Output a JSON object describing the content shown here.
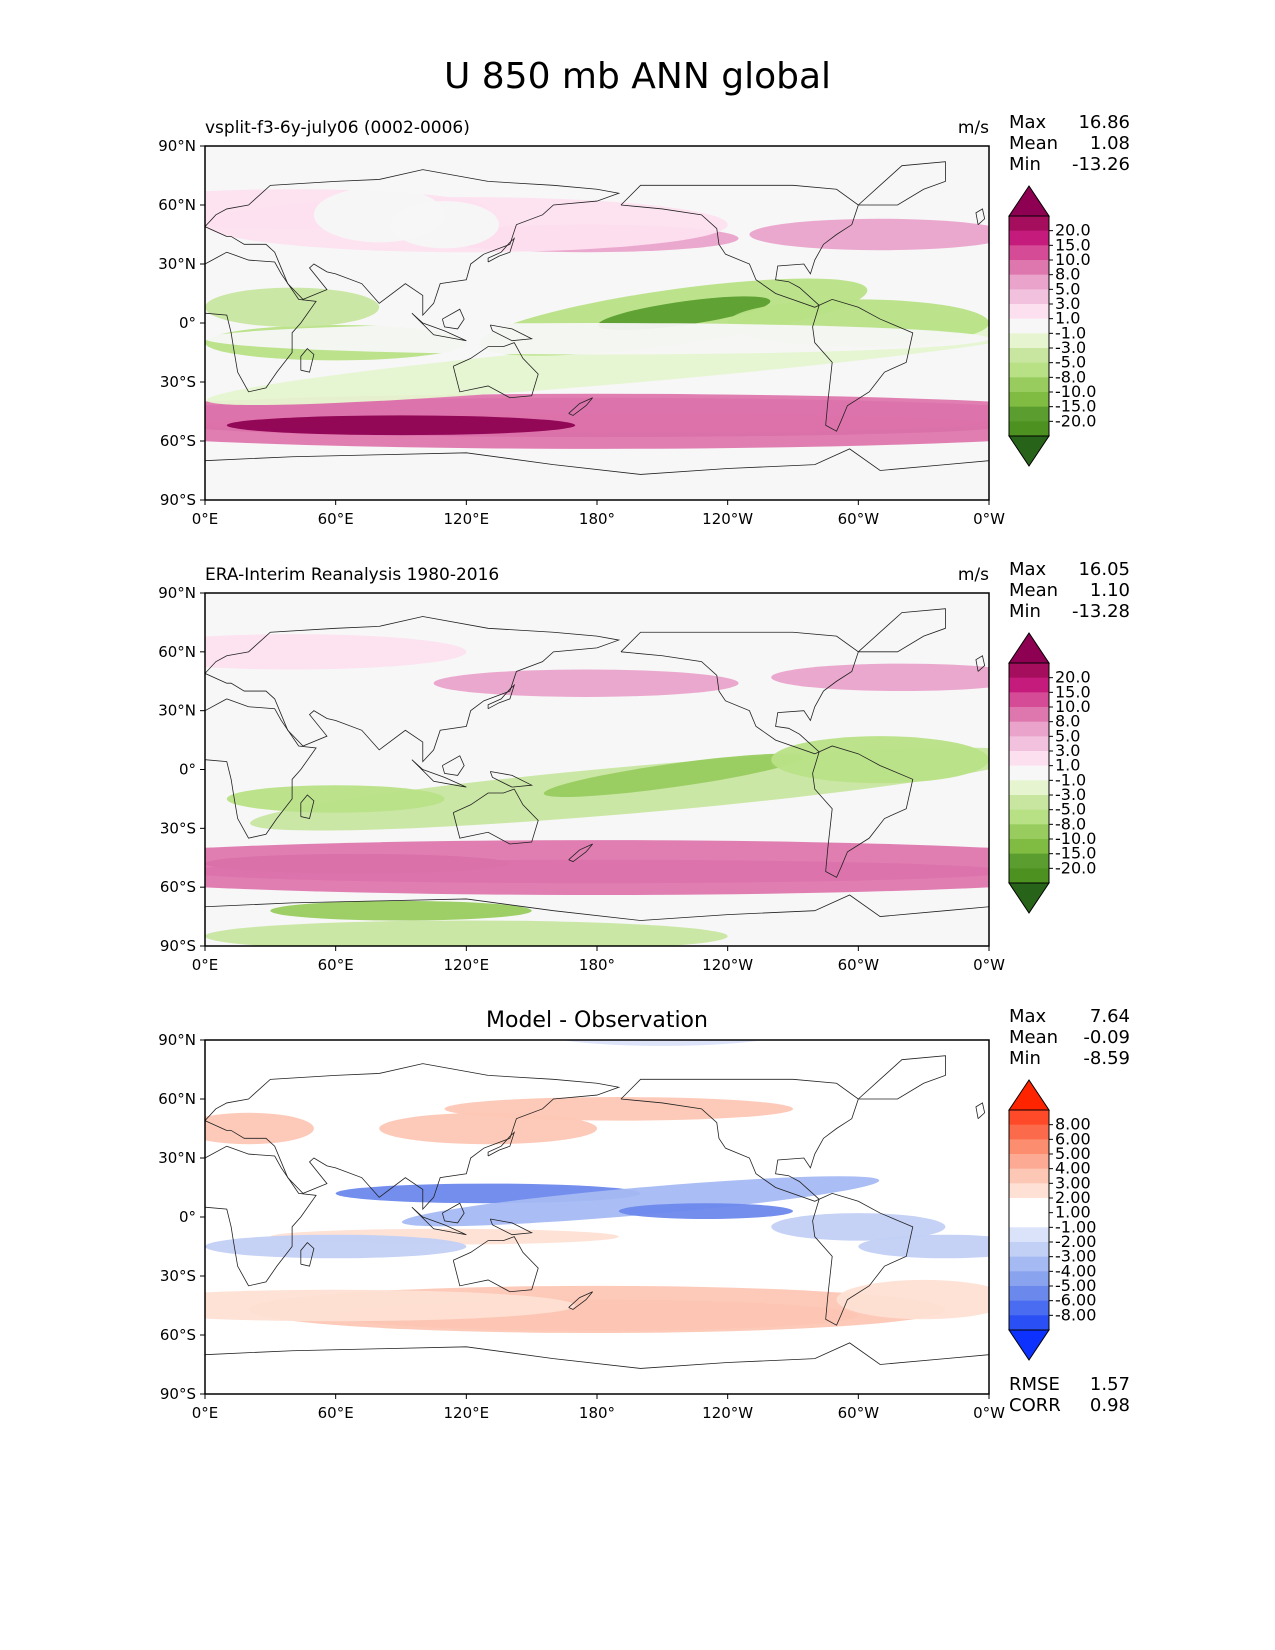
{
  "figure_title": "U 850 mb ANN global",
  "tick_labels": {
    "x": [
      "0°E",
      "60°E",
      "120°E",
      "180°",
      "120°W",
      "60°W",
      "0°W"
    ],
    "y": [
      "90°N",
      "60°N",
      "30°N",
      "0°",
      "30°S",
      "60°S",
      "90°S"
    ]
  },
  "chart_data": [
    {
      "type": "heatmap",
      "title": "vsplit-f3-6y-july06 (0002-0006)",
      "units": "m/s",
      "stats": [
        [
          "Max",
          "16.86"
        ],
        [
          "Mean",
          "1.08"
        ],
        [
          "Min",
          "-13.26"
        ]
      ],
      "xlim": [
        0,
        360
      ],
      "ylim": [
        -90,
        90
      ],
      "colorbar": {
        "labels": [
          "20.0",
          "15.0",
          "10.0",
          "8.0",
          "5.0",
          "3.0",
          "1.0",
          "-1.0",
          "-3.0",
          "-5.0",
          "-8.0",
          "-10.0",
          "-15.0",
          "-20.0"
        ],
        "colors": [
          "#8e0152",
          "#a50e5d",
          "#c51b7d",
          "#d54b96",
          "#de77ae",
          "#eaa3cb",
          "#f1c1dd",
          "#fde0ef",
          "#f7f7f7",
          "#e6f5d0",
          "#c8e6a0",
          "#b8e186",
          "#98cc5e",
          "#7fbc41",
          "#5b9e2f",
          "#4d9221",
          "#276419"
        ]
      }
    },
    {
      "type": "heatmap",
      "title": "ERA-Interim Reanalysis 1980-2016",
      "units": "m/s",
      "stats": [
        [
          "Max",
          "16.05"
        ],
        [
          "Mean",
          "1.10"
        ],
        [
          "Min",
          "-13.28"
        ]
      ],
      "xlim": [
        0,
        360
      ],
      "ylim": [
        -90,
        90
      ],
      "colorbar": {
        "labels": [
          "20.0",
          "15.0",
          "10.0",
          "8.0",
          "5.0",
          "3.0",
          "1.0",
          "-1.0",
          "-3.0",
          "-5.0",
          "-8.0",
          "-10.0",
          "-15.0",
          "-20.0"
        ],
        "colors": [
          "#8e0152",
          "#a50e5d",
          "#c51b7d",
          "#d54b96",
          "#de77ae",
          "#eaa3cb",
          "#f1c1dd",
          "#fde0ef",
          "#f7f7f7",
          "#e6f5d0",
          "#c8e6a0",
          "#b8e186",
          "#98cc5e",
          "#7fbc41",
          "#5b9e2f",
          "#4d9221",
          "#276419"
        ]
      }
    },
    {
      "type": "heatmap",
      "title": "Model - Observation",
      "units": "",
      "stats": [
        [
          "Max",
          "7.64"
        ],
        [
          "Mean",
          "-0.09"
        ],
        [
          "Min",
          "-8.59"
        ]
      ],
      "xlim": [
        0,
        360
      ],
      "ylim": [
        -90,
        90
      ],
      "colorbar": {
        "labels": [
          "8.00",
          "6.00",
          "5.00",
          "4.00",
          "3.00",
          "2.00",
          "1.00",
          "-1.00",
          "-2.00",
          "-3.00",
          "-4.00",
          "-5.00",
          "-6.00",
          "-8.00"
        ],
        "colors": [
          "#ff2400",
          "#ff4a2a",
          "#fb6a4a",
          "#fc8d6f",
          "#fcaa93",
          "#fdc7b5",
          "#fee0d4",
          "#ffffff",
          "#ffffff",
          "#dbe3fa",
          "#c2d0f6",
          "#a5b9f3",
          "#8aa3ef",
          "#6b88ec",
          "#4a6cf0",
          "#2a4ff5",
          "#0d32ff"
        ]
      },
      "footer_stats": [
        [
          "RMSE",
          "1.57"
        ],
        [
          "CORR",
          "0.98"
        ]
      ]
    }
  ]
}
